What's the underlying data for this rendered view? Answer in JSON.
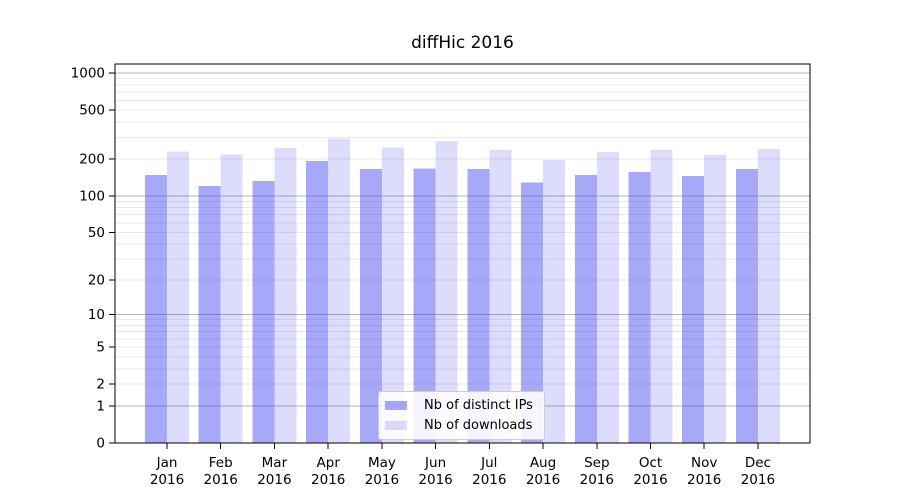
{
  "figure": {
    "title": "diffHic 2016"
  },
  "chart_data": {
    "type": "bar",
    "title": "diffHic 2016",
    "categories": [
      "Jan",
      "Feb",
      "Mar",
      "Apr",
      "May",
      "Jun",
      "Jul",
      "Aug",
      "Sep",
      "Oct",
      "Nov",
      "Dec"
    ],
    "x_year": "2016",
    "series": [
      {
        "name": "Nb of distinct IPs",
        "color": "rgba(70,70,240,0.47)",
        "values": [
          148,
          120,
          132,
          192,
          165,
          168,
          165,
          129,
          148,
          156,
          145,
          165
        ]
      },
      {
        "name": "Nb of downloads",
        "color": "rgba(70,70,240,0.19)",
        "values": [
          230,
          218,
          245,
          293,
          248,
          280,
          237,
          196,
          228,
          237,
          215,
          241
        ]
      }
    ],
    "yscale": "log1p",
    "yticks": [
      0,
      1,
      2,
      5,
      10,
      20,
      50,
      100,
      200,
      500,
      1000
    ],
    "ylim": [
      0,
      1185
    ],
    "grid": true,
    "legend_position": "lower-center-inside",
    "colors": {
      "major_grid": "#b3b3b3",
      "minor_grid": "#e9e9e9",
      "spine": "#000000"
    }
  }
}
